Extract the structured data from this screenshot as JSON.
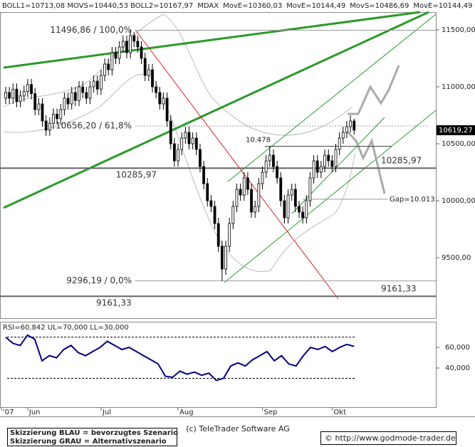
{
  "chart_data": {
    "type": "candlestick",
    "legend": [
      {
        "name": "BOLL1=10713,08 MOVS=10440,53 BOLL2=10167,97",
        "color": "#777777"
      },
      {
        "name": "MDAX",
        "color": "#000000"
      },
      {
        "name": "MovE=10360,03",
        "color": "#0000cc"
      },
      {
        "name": "MovE=10144,49",
        "color": "#cc0000"
      },
      {
        "name": "MovS=10486,69",
        "color": "#00b0c0"
      },
      {
        "name": "MovE=10144,49",
        "color": "#cc0000"
      }
    ],
    "ylim": [
      8969,
      11656
    ],
    "yticks": [
      {
        "value": 9500,
        "label": "9500,00"
      },
      {
        "value": 10000,
        "label": "10000,00"
      },
      {
        "value": 10500,
        "label": "10500,00"
      },
      {
        "value": 11000,
        "label": "11000,00"
      },
      {
        "value": 11500,
        "label": "11500,00"
      }
    ],
    "last": {
      "value": 10619.27,
      "label": "10619,27"
    },
    "x_labels": [
      "'07",
      "Jun",
      "Jul",
      "Aug",
      "Sep",
      "Okt"
    ],
    "levels": [
      {
        "value": 11496.86,
        "label": "11496,86 / 100,0%"
      },
      {
        "value": 10656.2,
        "label": "10656,20 / 61,8%"
      },
      {
        "value": 10285.97,
        "label": "10285,97"
      },
      {
        "value": 10285.97,
        "label": "10285,97"
      },
      {
        "value": 9296.19,
        "label": "9296,19 / 0,0%"
      },
      {
        "value": 9161.33,
        "label": "9161,33"
      },
      {
        "value": 9161.33,
        "label": "9161,33"
      },
      {
        "value": 10478,
        "label": "10.478"
      },
      {
        "value": 10013,
        "label": "Gap=10.013"
      }
    ],
    "ohlc": [
      [
        10900,
        11000,
        10850,
        10950
      ],
      [
        10950,
        11000,
        10850,
        10900
      ],
      [
        10900,
        11030,
        10850,
        10980
      ],
      [
        10980,
        11030,
        10820,
        10870
      ],
      [
        10870,
        10970,
        10820,
        10920
      ],
      [
        10920,
        11010,
        10870,
        10960
      ],
      [
        10960,
        11070,
        10910,
        11020
      ],
      [
        11020,
        11070,
        10890,
        10940
      ],
      [
        10940,
        10990,
        10750,
        10800
      ],
      [
        10800,
        10900,
        10750,
        10850
      ],
      [
        10850,
        10900,
        10650,
        10700
      ],
      [
        10700,
        10750,
        10570,
        10620
      ],
      [
        10620,
        10730,
        10570,
        10680
      ],
      [
        10680,
        10810,
        10630,
        10760
      ],
      [
        10760,
        10810,
        10670,
        10720
      ],
      [
        10720,
        10850,
        10670,
        10800
      ],
      [
        10800,
        10950,
        10750,
        10900
      ],
      [
        10900,
        10950,
        10800,
        10850
      ],
      [
        10850,
        11000,
        10800,
        10950
      ],
      [
        10950,
        11000,
        10830,
        10880
      ],
      [
        10880,
        11050,
        10830,
        11000
      ],
      [
        11000,
        11050,
        10900,
        10950
      ],
      [
        10950,
        11000,
        10850,
        10900
      ],
      [
        10900,
        11050,
        10850,
        11000
      ],
      [
        11000,
        11100,
        10950,
        11050
      ],
      [
        11050,
        11100,
        10930,
        10980
      ],
      [
        10980,
        11150,
        10930,
        11100
      ],
      [
        11100,
        11250,
        11050,
        11200
      ],
      [
        11200,
        11250,
        11100,
        11150
      ],
      [
        11150,
        11350,
        11100,
        11300
      ],
      [
        11300,
        11350,
        11200,
        11250
      ],
      [
        11250,
        11400,
        11200,
        11350
      ],
      [
        11350,
        11450,
        11300,
        11400
      ],
      [
        11400,
        11450,
        11250,
        11300
      ],
      [
        11300,
        11496.86,
        11250,
        11450
      ],
      [
        11450,
        11480,
        11350,
        11400
      ],
      [
        11400,
        11450,
        11300,
        11350
      ],
      [
        11350,
        11400,
        11200,
        11250
      ],
      [
        11250,
        11300,
        11050,
        11100
      ],
      [
        11100,
        11200,
        11050,
        11150
      ],
      [
        11150,
        11200,
        10950,
        11000
      ],
      [
        11000,
        11050,
        10900,
        10950
      ],
      [
        10950,
        11000,
        10800,
        10850
      ],
      [
        10850,
        10950,
        10800,
        10900
      ],
      [
        10900,
        10950,
        10650,
        10700
      ],
      [
        10700,
        10750,
        10450,
        10500
      ],
      [
        10500,
        10550,
        10300,
        10350
      ],
      [
        10350,
        10500,
        10300,
        10450
      ],
      [
        10450,
        10600,
        10400,
        10550
      ],
      [
        10550,
        10650,
        10500,
        10600
      ],
      [
        10600,
        10650,
        10450,
        10500
      ],
      [
        10500,
        10600,
        10450,
        10550
      ],
      [
        10550,
        10600,
        10400,
        10450
      ],
      [
        10450,
        10500,
        10250,
        10300
      ],
      [
        10300,
        10350,
        10100,
        10150
      ],
      [
        10150,
        10200,
        9950,
        10000
      ],
      [
        10000,
        10050,
        9900,
        9950
      ],
      [
        9950,
        10000,
        9750,
        9800
      ],
      [
        9800,
        9850,
        9550,
        9600
      ],
      [
        9600,
        9650,
        9296.19,
        9400
      ],
      [
        9400,
        9650,
        9350,
        9600
      ],
      [
        9600,
        9850,
        9550,
        9800
      ],
      [
        9800,
        10000,
        9750,
        9950
      ],
      [
        9950,
        10150,
        9900,
        10100
      ],
      [
        10100,
        10150,
        10000,
        10050
      ],
      [
        10050,
        10250,
        10000,
        10200
      ],
      [
        10200,
        10250,
        10050,
        10100
      ],
      [
        10100,
        10150,
        9850,
        9900
      ],
      [
        9900,
        10000,
        9850,
        9950
      ],
      [
        9950,
        10200,
        9900,
        10150
      ],
      [
        10150,
        10300,
        10100,
        10250
      ],
      [
        10250,
        10400,
        10200,
        10350
      ],
      [
        10350,
        10478,
        10300,
        10400
      ],
      [
        10400,
        10450,
        10250,
        10300
      ],
      [
        10300,
        10350,
        10150,
        10200
      ],
      [
        10200,
        10250,
        9950,
        10000
      ],
      [
        10000,
        10050,
        9800,
        9850
      ],
      [
        9850,
        10100,
        9800,
        10050
      ],
      [
        10050,
        10150,
        10000,
        10100
      ],
      [
        10100,
        10150,
        9900,
        9950
      ],
      [
        9950,
        10000,
        9850,
        9900
      ],
      [
        9900,
        9950,
        9800,
        9850
      ],
      [
        9850,
        10050,
        9800,
        10000
      ],
      [
        10000,
        10250,
        9950,
        10200
      ],
      [
        10200,
        10400,
        10150,
        10350
      ],
      [
        10350,
        10400,
        10200,
        10250
      ],
      [
        10250,
        10350,
        10200,
        10300
      ],
      [
        10300,
        10450,
        10250,
        10400
      ],
      [
        10400,
        10450,
        10300,
        10350
      ],
      [
        10350,
        10400,
        10250,
        10300
      ],
      [
        10300,
        10500,
        10250,
        10450
      ],
      [
        10450,
        10600,
        10400,
        10550
      ],
      [
        10550,
        10650,
        10500,
        10600
      ],
      [
        10600,
        10700,
        10550,
        10650
      ],
      [
        10650,
        10750,
        10600,
        10700
      ],
      [
        10700,
        10720,
        10580,
        10619.27
      ]
    ],
    "rsi": {
      "title": "RSI=60,842 UL=70,000 LL=30,000",
      "color": "#000080",
      "ylim": [
        2,
        85
      ],
      "bands": [
        70,
        30
      ],
      "yticks": [
        {
          "value": 40,
          "label": "40,000"
        },
        {
          "value": 60,
          "label": "60,000"
        }
      ],
      "values": [
        70,
        64,
        62,
        72,
        68,
        47,
        52,
        50,
        58,
        62,
        55,
        52,
        56,
        60,
        66,
        62,
        58,
        60,
        56,
        52,
        48,
        44,
        32,
        31,
        37,
        34,
        36,
        33,
        35,
        28,
        30,
        42,
        45,
        42,
        48,
        52,
        56,
        47,
        52,
        44,
        42,
        52,
        60,
        58,
        61,
        56,
        60,
        63,
        61
      ]
    },
    "footer": {
      "copyright": "(c) TeleTrader Software AG",
      "note1": "Skizzierung BLAU = bevorzugtes Szenario",
      "note2": "Skizzierung GRAU = Alternativszenario",
      "url": "© http://www.godmode-trader.de"
    }
  }
}
